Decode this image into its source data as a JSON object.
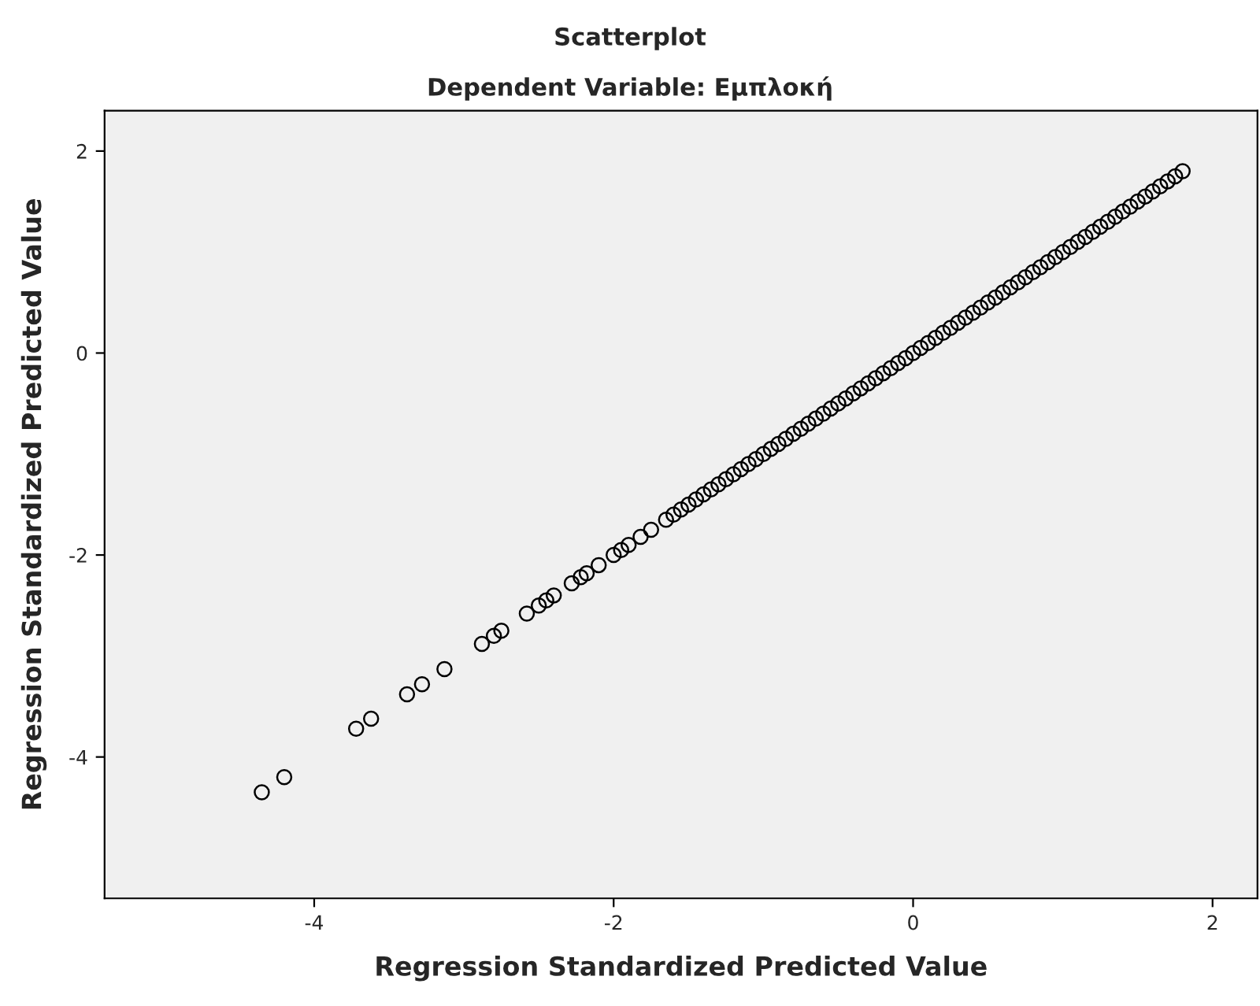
{
  "chart_data": {
    "type": "scatter",
    "title": "Scatterplot",
    "subtitle": "Dependent Variable: Εμπλοκή",
    "xlabel": "Regression Standardized Predicted Value",
    "ylabel": "Regression Standardized Predicted Value",
    "xlim": [
      -5.4,
      2.3
    ],
    "ylim": [
      -5.4,
      2.4
    ],
    "xticks": [
      -4,
      -2,
      0,
      2
    ],
    "yticks": [
      -4,
      -2,
      0,
      2
    ],
    "marker": "circle",
    "grid": false,
    "series": [
      {
        "color": "#000000",
        "x": [
          -4.35,
          -4.2,
          -3.72,
          -3.62,
          -3.38,
          -3.28,
          -3.13,
          -2.88,
          -2.8,
          -2.75,
          -2.58,
          -2.5,
          -2.45,
          -2.4,
          -2.28,
          -2.22,
          -2.18,
          -2.1,
          -2.0,
          -1.95,
          -1.9,
          -1.82,
          -1.75,
          -1.65,
          -1.6,
          -1.55,
          -1.5,
          -1.45,
          -1.4,
          -1.35,
          -1.3,
          -1.25,
          -1.2,
          -1.15,
          -1.1,
          -1.05,
          -1.0,
          -0.95,
          -0.9,
          -0.85,
          -0.8,
          -0.75,
          -0.7,
          -0.65,
          -0.6,
          -0.55,
          -0.5,
          -0.45,
          -0.4,
          -0.35,
          -0.3,
          -0.25,
          -0.2,
          -0.15,
          -0.1,
          -0.05,
          0,
          0.05,
          0.1,
          0.15,
          0.2,
          0.25,
          0.3,
          0.35,
          0.4,
          0.45,
          0.5,
          0.55,
          0.6,
          0.65,
          0.7,
          0.75,
          0.8,
          0.85,
          0.9,
          0.95,
          1.0,
          1.05,
          1.1,
          1.15,
          1.2,
          1.25,
          1.3,
          1.35,
          1.4,
          1.45,
          1.5,
          1.55,
          1.6,
          1.65,
          1.7,
          1.75,
          1.8
        ],
        "values": [
          -4.35,
          -4.2,
          -3.72,
          -3.62,
          -3.38,
          -3.28,
          -3.13,
          -2.88,
          -2.8,
          -2.75,
          -2.58,
          -2.5,
          -2.45,
          -2.4,
          -2.28,
          -2.22,
          -2.18,
          -2.1,
          -2.0,
          -1.95,
          -1.9,
          -1.82,
          -1.75,
          -1.65,
          -1.6,
          -1.55,
          -1.5,
          -1.45,
          -1.4,
          -1.35,
          -1.3,
          -1.25,
          -1.2,
          -1.15,
          -1.1,
          -1.05,
          -1.0,
          -0.95,
          -0.9,
          -0.85,
          -0.8,
          -0.75,
          -0.7,
          -0.65,
          -0.6,
          -0.55,
          -0.5,
          -0.45,
          -0.4,
          -0.35,
          -0.3,
          -0.25,
          -0.2,
          -0.15,
          -0.1,
          -0.05,
          0,
          0.05,
          0.1,
          0.15,
          0.2,
          0.25,
          0.3,
          0.35,
          0.4,
          0.45,
          0.5,
          0.55,
          0.6,
          0.65,
          0.7,
          0.75,
          0.8,
          0.85,
          0.9,
          0.95,
          1.0,
          1.05,
          1.1,
          1.15,
          1.2,
          1.25,
          1.3,
          1.35,
          1.4,
          1.45,
          1.5,
          1.55,
          1.6,
          1.65,
          1.7,
          1.75,
          1.8
        ]
      }
    ]
  }
}
